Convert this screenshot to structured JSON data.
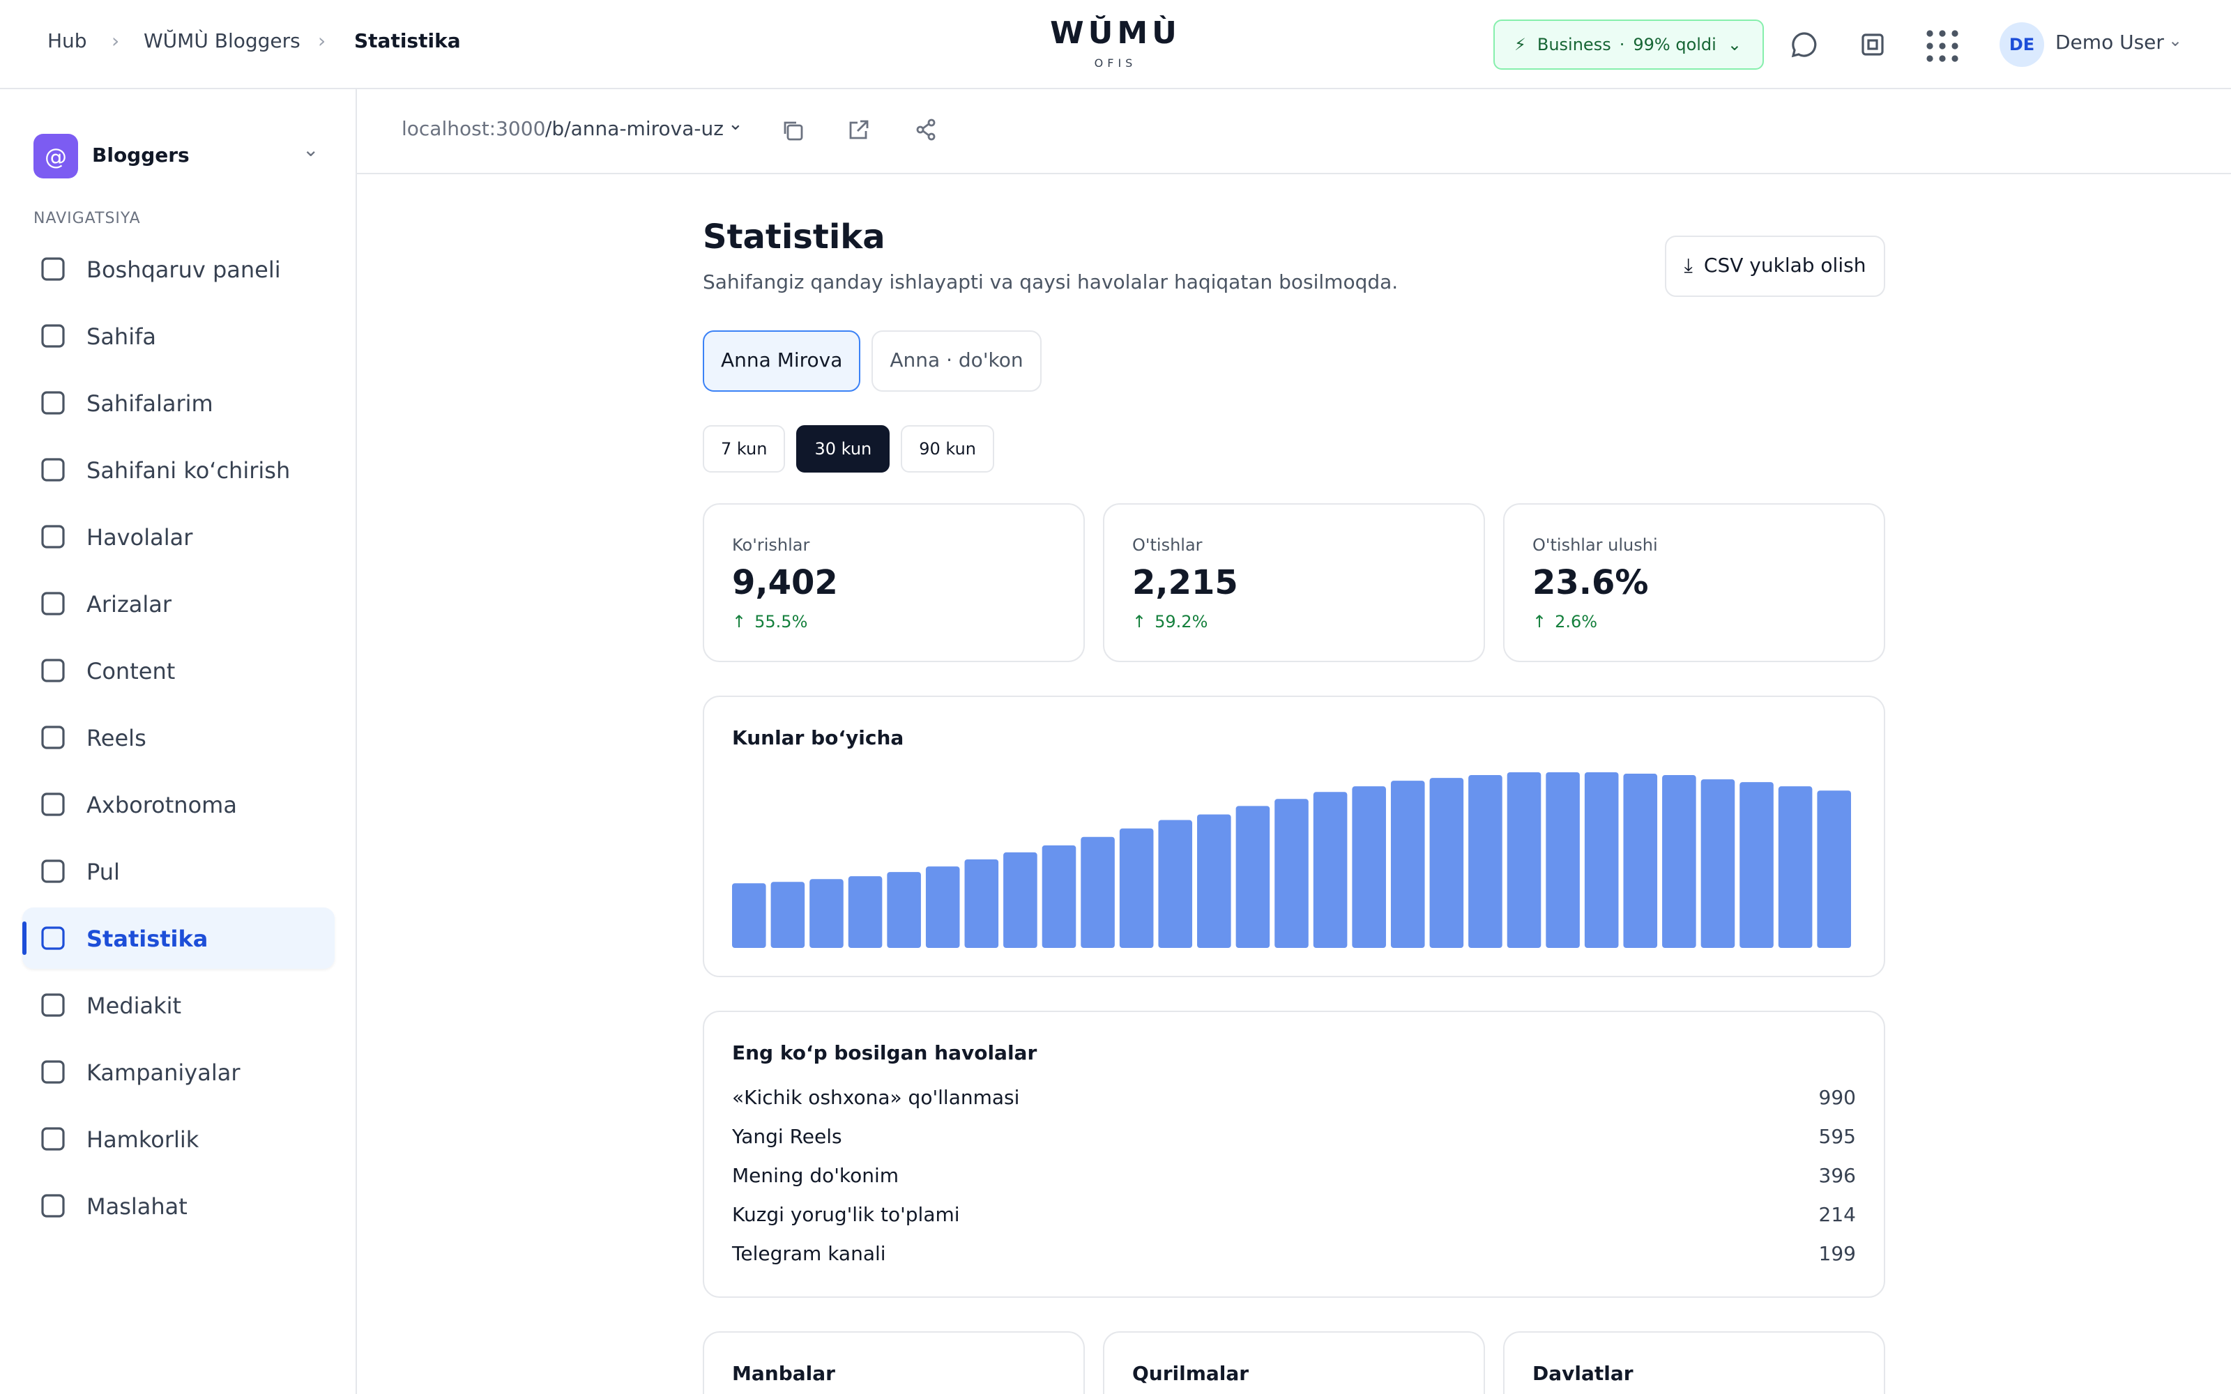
{
  "header": {
    "breadcrumbs": [
      "Hub",
      "WŬMÙ Bloggers",
      "Statistika"
    ],
    "logo": "WŬMÙ",
    "logo_sub": "OFIS",
    "plan": "Business",
    "plan_status": "99% qoldi",
    "user_initials": "DE",
    "user_name": "Demo User"
  },
  "sidebar": {
    "workspace": "Bloggers",
    "section": "NAVIGATSIYA",
    "active_item": 10,
    "items": [
      "Boshqaruv paneli",
      "Sahifa",
      "Sahifalarim",
      "Sahifani koʻchirish",
      "Havolalar",
      "Arizalar",
      "Content",
      "Reels",
      "Axborotnoma",
      "Pul",
      "Statistika",
      "Mediakit",
      "Kampaniyalar",
      "Hamkorlik",
      "Maslahat"
    ]
  },
  "url": {
    "host": "localhost:3000",
    "path": "/b/anna-mirova-uz"
  },
  "page": {
    "title": "Statistika",
    "subtitle": "Sahifangiz qanday ishlayapti va qaysi havolalar haqiqatan bosilmoqda.",
    "export_button": "CSV yuklab olish",
    "profiles": [
      "Anna Mirova",
      "Anna · do'kon"
    ],
    "active_profile": 0,
    "ranges": [
      "7 kun",
      "30 kun",
      "90 kun"
    ],
    "active_range": 1
  },
  "stats": [
    {
      "label": "Ko'rishlar",
      "value": "9,402",
      "change": "55.5%"
    },
    {
      "label": "O'tishlar",
      "value": "2,215",
      "change": "59.2%"
    },
    {
      "label": "O'tishlar ulushi",
      "value": "23.6%",
      "change": "2.6%"
    }
  ],
  "chart_data": {
    "type": "bar",
    "title": "Kunlar boʻyicha",
    "color": "#6893ee",
    "values": [
      46,
      47,
      49,
      51,
      54,
      58,
      63,
      68,
      73,
      79,
      85,
      91,
      95,
      101,
      106,
      111,
      115,
      119,
      121,
      123,
      125,
      125,
      125,
      124,
      123,
      120,
      118,
      115,
      112
    ]
  },
  "top_links": {
    "title": "Eng koʻp bosilgan havolalar",
    "rows": [
      [
        "«Kichik oshxona» qo'llanmasi",
        990
      ],
      [
        "Yangi Reels",
        595
      ],
      [
        "Mening do'konim",
        396
      ],
      [
        "Kuzgi yorug'lik to'plami",
        214
      ],
      [
        "Telegram kanali",
        199
      ]
    ]
  },
  "panels": [
    "Manbalar",
    "Qurilmalar",
    "Davlatlar"
  ]
}
